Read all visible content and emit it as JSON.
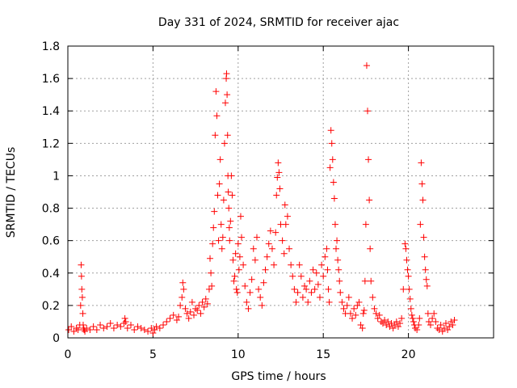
{
  "chart_data": {
    "type": "scatter",
    "title": "Day 331 of 2024, SRMTID for receiver ajac",
    "xlabel": "GPS time / hours",
    "ylabel": "SRMTID / TECUs",
    "xlim": [
      0,
      25
    ],
    "ylim": [
      0,
      1.8
    ],
    "xticks": [
      0,
      5,
      10,
      15,
      20
    ],
    "xtick_labels": [
      "0",
      "5",
      "10",
      "15",
      "20"
    ],
    "yticks": [
      0,
      0.2,
      0.4,
      0.6,
      0.8,
      1,
      1.2,
      1.4,
      1.6,
      1.8
    ],
    "ytick_labels": [
      "0",
      "0.2",
      "0.4",
      "0.6",
      "0.8",
      "1",
      "1.2",
      "1.4",
      "1.6",
      "1.8"
    ],
    "grid": true,
    "marker": "+",
    "series": [
      {
        "name": "SRMTID",
        "color": "#ff0000",
        "x": [
          0.05,
          0.2,
          0.35,
          0.5,
          0.6,
          0.7,
          0.75,
          0.78,
          0.8,
          0.82,
          0.85,
          0.88,
          0.9,
          0.92,
          0.95,
          1.0,
          1.1,
          1.3,
          1.5,
          1.7,
          1.9,
          2.1,
          2.3,
          2.5,
          2.7,
          2.9,
          3.1,
          3.3,
          3.35,
          3.4,
          3.5,
          3.7,
          3.9,
          4.1,
          4.3,
          4.5,
          4.7,
          4.9,
          5.0,
          5.1,
          5.2,
          5.4,
          5.6,
          5.8,
          6.0,
          6.2,
          6.4,
          6.5,
          6.6,
          6.7,
          6.75,
          6.8,
          6.9,
          7.0,
          7.1,
          7.2,
          7.3,
          7.4,
          7.5,
          7.6,
          7.7,
          7.8,
          7.9,
          8.0,
          8.1,
          8.2,
          8.3,
          8.35,
          8.4,
          8.45,
          8.5,
          8.55,
          8.6,
          8.65,
          8.7,
          8.75,
          8.8,
          8.85,
          8.9,
          8.95,
          9.0,
          9.05,
          9.1,
          9.15,
          9.2,
          9.25,
          9.3,
          9.32,
          9.35,
          9.38,
          9.4,
          9.42,
          9.45,
          9.48,
          9.5,
          9.55,
          9.6,
          9.65,
          9.7,
          9.75,
          9.8,
          9.85,
          9.9,
          9.95,
          10.0,
          10.05,
          10.1,
          10.15,
          10.2,
          10.3,
          10.4,
          10.5,
          10.6,
          10.7,
          10.8,
          10.9,
          11.0,
          11.1,
          11.2,
          11.3,
          11.4,
          11.5,
          11.6,
          11.7,
          11.8,
          11.9,
          12.0,
          12.1,
          12.2,
          12.25,
          12.3,
          12.35,
          12.4,
          12.45,
          12.5,
          12.6,
          12.7,
          12.75,
          12.8,
          12.9,
          13.0,
          13.1,
          13.2,
          13.3,
          13.4,
          13.5,
          13.6,
          13.7,
          13.8,
          13.9,
          14.0,
          14.1,
          14.2,
          14.3,
          14.4,
          14.5,
          14.6,
          14.7,
          14.8,
          14.9,
          15.0,
          15.1,
          15.2,
          15.25,
          15.3,
          15.35,
          15.4,
          15.45,
          15.5,
          15.55,
          15.6,
          15.65,
          15.7,
          15.75,
          15.8,
          15.85,
          15.9,
          15.95,
          16.0,
          16.1,
          16.2,
          16.3,
          16.4,
          16.5,
          16.6,
          16.7,
          16.8,
          16.9,
          17.0,
          17.1,
          17.2,
          17.3,
          17.35,
          17.4,
          17.45,
          17.5,
          17.55,
          17.6,
          17.65,
          17.7,
          17.75,
          17.8,
          17.9,
          18.0,
          18.1,
          18.2,
          18.3,
          18.4,
          18.5,
          18.6,
          18.7,
          18.8,
          18.9,
          19.0,
          19.1,
          19.2,
          19.3,
          19.4,
          19.5,
          19.6,
          19.7,
          19.8,
          19.85,
          19.9,
          19.95,
          20.0,
          20.05,
          20.1,
          20.15,
          20.2,
          20.25,
          20.3,
          20.35,
          20.4,
          20.5,
          20.6,
          20.65,
          20.7,
          20.75,
          20.8,
          20.85,
          20.9,
          20.95,
          21.0,
          21.05,
          21.1,
          21.15,
          21.2,
          21.3,
          21.4,
          21.5,
          21.6,
          21.7,
          21.8,
          21.9,
          22.0,
          22.1,
          22.2,
          22.3,
          22.4,
          22.5,
          22.6,
          22.7
        ],
        "y": [
          0.05,
          0.07,
          0.04,
          0.06,
          0.05,
          0.08,
          0.2,
          0.45,
          0.38,
          0.3,
          0.25,
          0.15,
          0.08,
          0.06,
          0.05,
          0.04,
          0.06,
          0.05,
          0.07,
          0.05,
          0.08,
          0.06,
          0.07,
          0.09,
          0.06,
          0.08,
          0.07,
          0.09,
          0.12,
          0.1,
          0.06,
          0.08,
          0.05,
          0.07,
          0.06,
          0.05,
          0.04,
          0.06,
          0.03,
          0.05,
          0.07,
          0.06,
          0.08,
          0.1,
          0.12,
          0.14,
          0.11,
          0.13,
          0.2,
          0.25,
          0.34,
          0.3,
          0.18,
          0.15,
          0.12,
          0.16,
          0.22,
          0.14,
          0.18,
          0.17,
          0.2,
          0.15,
          0.22,
          0.19,
          0.24,
          0.21,
          0.3,
          0.49,
          0.4,
          0.32,
          0.58,
          0.68,
          0.78,
          1.25,
          1.52,
          1.37,
          0.88,
          0.6,
          0.95,
          1.1,
          0.7,
          0.55,
          0.62,
          0.85,
          1.2,
          1.45,
          1.6,
          1.63,
          1.5,
          1.25,
          1.0,
          0.9,
          0.8,
          0.68,
          0.6,
          0.72,
          1.0,
          0.88,
          0.48,
          0.35,
          0.38,
          0.52,
          0.3,
          0.28,
          0.58,
          0.42,
          0.5,
          0.75,
          0.62,
          0.45,
          0.32,
          0.22,
          0.18,
          0.28,
          0.36,
          0.55,
          0.48,
          0.62,
          0.3,
          0.25,
          0.2,
          0.34,
          0.42,
          0.5,
          0.58,
          0.66,
          0.55,
          0.45,
          0.65,
          0.88,
          0.99,
          1.08,
          1.02,
          0.92,
          0.7,
          0.6,
          0.52,
          0.82,
          0.7,
          0.75,
          0.55,
          0.45,
          0.38,
          0.3,
          0.22,
          0.28,
          0.45,
          0.38,
          0.25,
          0.32,
          0.3,
          0.22,
          0.35,
          0.28,
          0.42,
          0.3,
          0.4,
          0.33,
          0.25,
          0.45,
          0.38,
          0.5,
          0.55,
          0.42,
          0.3,
          0.22,
          1.05,
          1.28,
          1.2,
          1.1,
          0.96,
          0.86,
          0.7,
          0.55,
          0.6,
          0.48,
          0.42,
          0.35,
          0.28,
          0.22,
          0.18,
          0.15,
          0.2,
          0.25,
          0.15,
          0.12,
          0.18,
          0.14,
          0.2,
          0.22,
          0.08,
          0.06,
          0.15,
          0.17,
          0.35,
          0.7,
          1.68,
          1.4,
          1.1,
          0.85,
          0.55,
          0.35,
          0.25,
          0.18,
          0.15,
          0.12,
          0.14,
          0.1,
          0.09,
          0.11,
          0.08,
          0.1,
          0.07,
          0.09,
          0.06,
          0.08,
          0.1,
          0.07,
          0.09,
          0.12,
          0.3,
          0.58,
          0.55,
          0.48,
          0.42,
          0.38,
          0.3,
          0.24,
          0.18,
          0.14,
          0.12,
          0.1,
          0.08,
          0.06,
          0.05,
          0.08,
          0.12,
          0.7,
          1.08,
          0.95,
          0.85,
          0.62,
          0.5,
          0.42,
          0.36,
          0.32,
          0.15,
          0.1,
          0.08,
          0.12,
          0.15,
          0.1,
          0.06,
          0.05,
          0.08,
          0.04,
          0.06,
          0.09,
          0.05,
          0.07,
          0.1,
          0.08,
          0.11
        ]
      }
    ]
  }
}
